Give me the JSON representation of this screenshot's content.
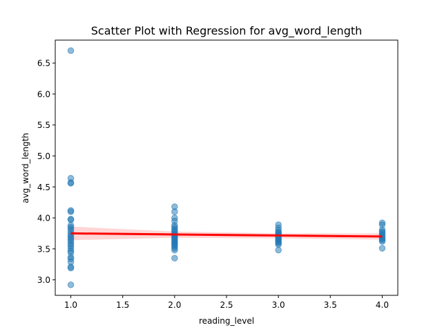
{
  "chart_data": {
    "type": "scatter",
    "title": "Scatter Plot with Regression for avg_word_length",
    "xlabel": "reading_level",
    "ylabel": "avg_word_length",
    "xlim": [
      0.85,
      4.15
    ],
    "ylim": [
      2.75,
      6.87
    ],
    "xticks": [
      "1.0",
      "1.5",
      "2.0",
      "2.5",
      "3.0",
      "3.5",
      "4.0"
    ],
    "yticks": [
      "3.0",
      "3.5",
      "4.0",
      "4.5",
      "5.0",
      "5.5",
      "6.0",
      "6.5"
    ],
    "grid": false,
    "colors": {
      "points": "#1f77b4",
      "regression": "#ff0000",
      "band": "#ffb3b3"
    },
    "points": [
      {
        "x": 1,
        "y": 6.7
      },
      {
        "x": 1,
        "y": 4.64
      },
      {
        "x": 1,
        "y": 4.57
      },
      {
        "x": 1,
        "y": 4.56
      },
      {
        "x": 1,
        "y": 4.12
      },
      {
        "x": 1,
        "y": 4.1
      },
      {
        "x": 1,
        "y": 3.98
      },
      {
        "x": 1,
        "y": 3.97
      },
      {
        "x": 1,
        "y": 3.88
      },
      {
        "x": 1,
        "y": 3.85
      },
      {
        "x": 1,
        "y": 3.82
      },
      {
        "x": 1,
        "y": 3.78
      },
      {
        "x": 1,
        "y": 3.74
      },
      {
        "x": 1,
        "y": 3.71
      },
      {
        "x": 1,
        "y": 3.68
      },
      {
        "x": 1,
        "y": 3.65
      },
      {
        "x": 1,
        "y": 3.62
      },
      {
        "x": 1,
        "y": 3.58
      },
      {
        "x": 1,
        "y": 3.55
      },
      {
        "x": 1,
        "y": 3.51
      },
      {
        "x": 1,
        "y": 3.47
      },
      {
        "x": 1,
        "y": 3.44
      },
      {
        "x": 1,
        "y": 3.37
      },
      {
        "x": 1,
        "y": 3.34
      },
      {
        "x": 1,
        "y": 3.29
      },
      {
        "x": 1,
        "y": 3.21
      },
      {
        "x": 1,
        "y": 3.19
      },
      {
        "x": 1,
        "y": 2.92
      },
      {
        "x": 2,
        "y": 4.18
      },
      {
        "x": 2,
        "y": 4.1
      },
      {
        "x": 2,
        "y": 4.0
      },
      {
        "x": 2,
        "y": 3.95
      },
      {
        "x": 2,
        "y": 3.88
      },
      {
        "x": 2,
        "y": 3.85
      },
      {
        "x": 2,
        "y": 3.82
      },
      {
        "x": 2,
        "y": 3.79
      },
      {
        "x": 2,
        "y": 3.77
      },
      {
        "x": 2,
        "y": 3.74
      },
      {
        "x": 2,
        "y": 3.72
      },
      {
        "x": 2,
        "y": 3.7
      },
      {
        "x": 2,
        "y": 3.68
      },
      {
        "x": 2,
        "y": 3.66
      },
      {
        "x": 2,
        "y": 3.64
      },
      {
        "x": 2,
        "y": 3.62
      },
      {
        "x": 2,
        "y": 3.6
      },
      {
        "x": 2,
        "y": 3.58
      },
      {
        "x": 2,
        "y": 3.56
      },
      {
        "x": 2,
        "y": 3.54
      },
      {
        "x": 2,
        "y": 3.51
      },
      {
        "x": 2,
        "y": 3.48
      },
      {
        "x": 2,
        "y": 3.35
      },
      {
        "x": 3,
        "y": 3.89
      },
      {
        "x": 3,
        "y": 3.84
      },
      {
        "x": 3,
        "y": 3.8
      },
      {
        "x": 3,
        "y": 3.77
      },
      {
        "x": 3,
        "y": 3.75
      },
      {
        "x": 3,
        "y": 3.73
      },
      {
        "x": 3,
        "y": 3.71
      },
      {
        "x": 3,
        "y": 3.69
      },
      {
        "x": 3,
        "y": 3.67
      },
      {
        "x": 3,
        "y": 3.65
      },
      {
        "x": 3,
        "y": 3.63
      },
      {
        "x": 3,
        "y": 3.61
      },
      {
        "x": 3,
        "y": 3.59
      },
      {
        "x": 3,
        "y": 3.57
      },
      {
        "x": 3,
        "y": 3.48
      },
      {
        "x": 4,
        "y": 3.92
      },
      {
        "x": 4,
        "y": 3.89
      },
      {
        "x": 4,
        "y": 3.81
      },
      {
        "x": 4,
        "y": 3.78
      },
      {
        "x": 4,
        "y": 3.76
      },
      {
        "x": 4,
        "y": 3.73
      },
      {
        "x": 4,
        "y": 3.71
      },
      {
        "x": 4,
        "y": 3.68
      },
      {
        "x": 4,
        "y": 3.66
      },
      {
        "x": 4,
        "y": 3.64
      },
      {
        "x": 4,
        "y": 3.62
      },
      {
        "x": 4,
        "y": 3.51
      }
    ],
    "regression": {
      "start": {
        "x": 1,
        "y": 3.75
      },
      "end": {
        "x": 4,
        "y": 3.7
      },
      "ci_upper": [
        {
          "x": 1,
          "y": 3.86
        },
        {
          "x": 2,
          "y": 3.78
        },
        {
          "x": 3,
          "y": 3.75
        },
        {
          "x": 4,
          "y": 3.75
        }
      ],
      "ci_lower": [
        {
          "x": 1,
          "y": 3.64
        },
        {
          "x": 2,
          "y": 3.68
        },
        {
          "x": 3,
          "y": 3.67
        },
        {
          "x": 4,
          "y": 3.65
        }
      ]
    }
  }
}
